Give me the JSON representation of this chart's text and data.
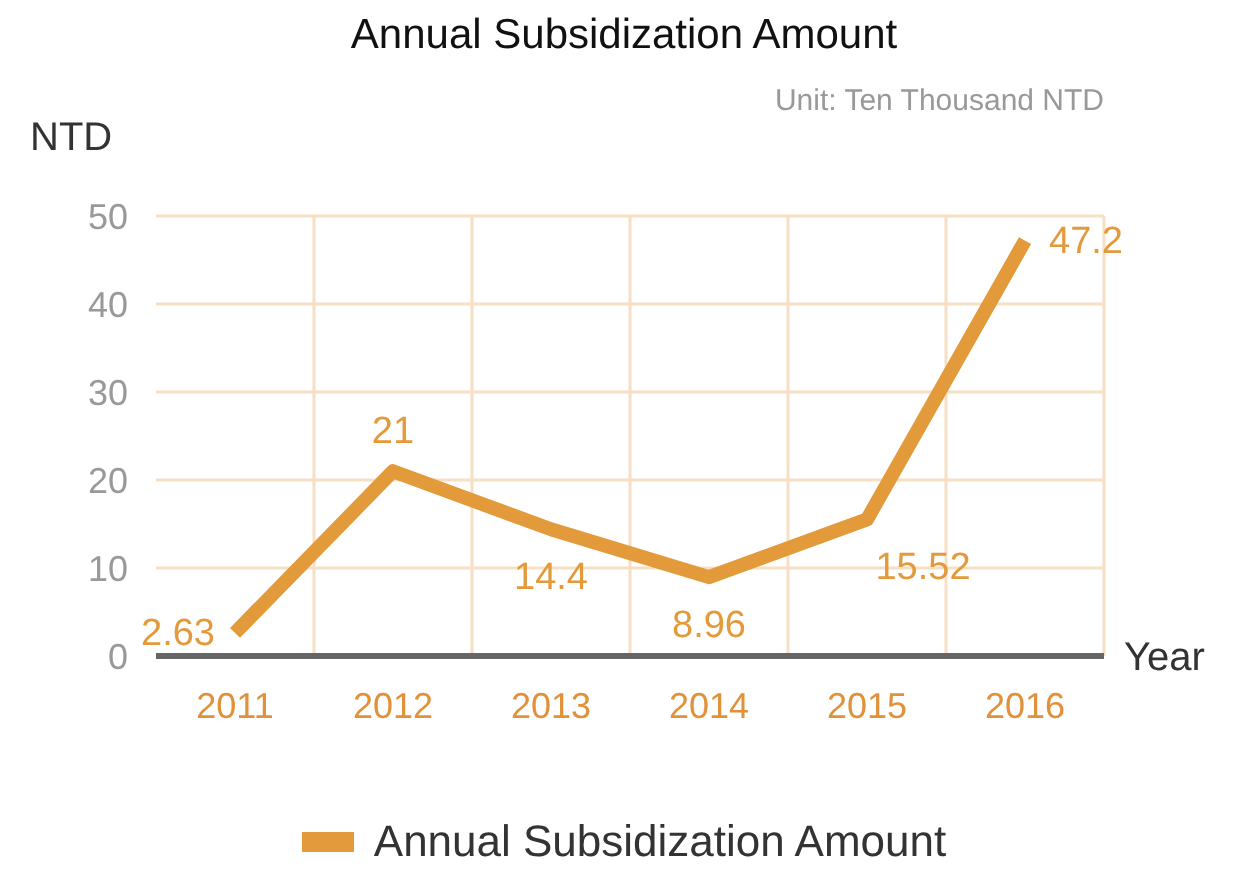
{
  "chart_data": {
    "type": "line",
    "title": "Annual Subsidization Amount",
    "subtitle": "Unit: Ten Thousand NTD",
    "ylabel": "NTD",
    "xlabel": "Year",
    "categories": [
      "2011",
      "2012",
      "2013",
      "2014",
      "2015",
      "2016"
    ],
    "series": [
      {
        "name": "Annual Subsidization Amount",
        "color": "#e39a3b",
        "values": [
          2.63,
          21,
          14.4,
          8.96,
          15.52,
          47.2
        ]
      }
    ],
    "ylim": [
      0,
      50
    ],
    "yticks": [
      0,
      10,
      20,
      30,
      40,
      50
    ],
    "grid": true,
    "legend": "bottom",
    "marker": "none",
    "line_style": "solid",
    "data_labels": true
  }
}
